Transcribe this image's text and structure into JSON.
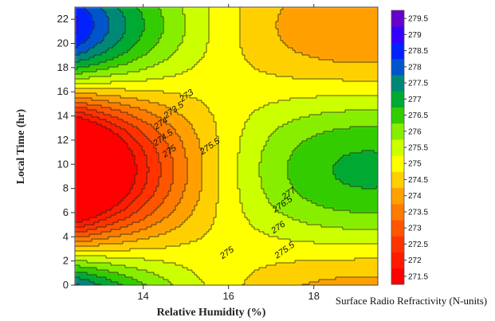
{
  "chart_data": {
    "type": "heatmap",
    "subtype": "filled-contour",
    "xlabel": "Relative Humidity (%)",
    "ylabel": "Local Time (hr)",
    "colorbar_label": "Surface Radio Refractivity (N-units)",
    "xlim": [
      12.4,
      19.5
    ],
    "ylim": [
      0,
      23
    ],
    "x_ticks": [
      14,
      16,
      18
    ],
    "y_ticks": [
      0,
      2,
      4,
      6,
      8,
      10,
      12,
      14,
      16,
      18,
      20,
      22
    ],
    "levels": [
      271.5,
      272,
      272.5,
      273,
      273.5,
      274,
      274.5,
      275,
      275.5,
      276,
      276.5,
      277,
      277.5,
      278,
      278.5,
      279,
      279.5
    ],
    "level_labels": [
      "271.5",
      "272",
      "272.5",
      "273",
      "273.5",
      "274",
      "274.5",
      "275",
      "275.5",
      "276",
      "276.5",
      "277",
      "277.5",
      "278",
      "278.5",
      "279",
      "279.5"
    ],
    "level_colors": [
      "#ff0000",
      "#ff1a00",
      "#ff3300",
      "#ff5500",
      "#ff7a00",
      "#ffa000",
      "#ffd000",
      "#ffff00",
      "#ccff00",
      "#88ee00",
      "#33cc00",
      "#00aa33",
      "#008877",
      "#0055cc",
      "#0022ff",
      "#3300ff",
      "#6600cc"
    ],
    "contour_labels": [
      {
        "text": "273",
        "x": 15.05,
        "y": 15.5
      },
      {
        "text": "273.5",
        "x": 14.75,
        "y": 14.3
      },
      {
        "text": "274",
        "x": 14.45,
        "y": 13.2
      },
      {
        "text": "274.5",
        "x": 14.5,
        "y": 12.0
      },
      {
        "text": "275",
        "x": 14.65,
        "y": 10.9
      },
      {
        "text": "275.5",
        "x": 15.6,
        "y": 11.3
      },
      {
        "text": "277",
        "x": 17.45,
        "y": 7.4
      },
      {
        "text": "276.5",
        "x": 17.3,
        "y": 6.5
      },
      {
        "text": "276",
        "x": 17.2,
        "y": 4.6
      },
      {
        "text": "275.5",
        "x": 17.35,
        "y": 2.7
      },
      {
        "text": "275",
        "x": 16.0,
        "y": 2.5
      }
    ]
  }
}
